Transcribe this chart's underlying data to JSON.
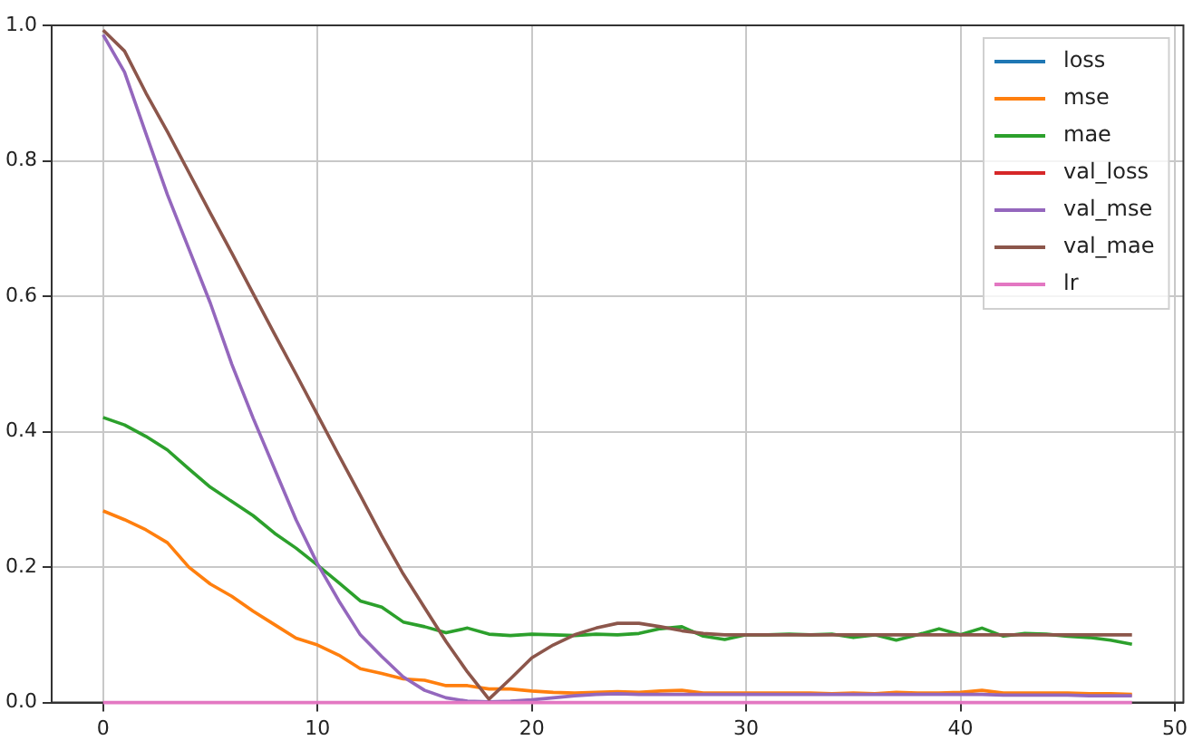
{
  "chart_data": {
    "type": "line",
    "x": [
      0,
      1,
      2,
      3,
      4,
      5,
      6,
      7,
      8,
      9,
      10,
      11,
      12,
      13,
      14,
      15,
      16,
      17,
      18,
      19,
      20,
      21,
      22,
      23,
      24,
      25,
      26,
      27,
      28,
      29,
      30,
      31,
      32,
      33,
      34,
      35,
      36,
      37,
      38,
      39,
      40,
      41,
      42,
      43,
      44,
      45,
      46,
      47,
      48
    ],
    "series": [
      {
        "name": "loss",
        "color": "#1f77b4",
        "values": [
          null,
          null,
          null,
          null,
          null,
          null,
          null,
          null,
          null,
          null,
          null,
          null,
          null,
          null,
          null,
          null,
          null,
          null,
          null,
          null,
          null,
          null,
          null,
          null,
          null,
          null,
          null,
          null,
          null,
          null,
          null,
          null,
          null,
          null,
          null,
          null,
          null,
          null,
          null,
          null,
          null,
          null,
          null,
          null,
          null,
          null,
          null,
          null,
          null
        ]
      },
      {
        "name": "mse",
        "color": "#ff7f0e",
        "values": [
          0.283,
          0.27,
          0.255,
          0.236,
          0.2,
          0.175,
          0.157,
          0.135,
          0.115,
          0.095,
          0.085,
          0.07,
          0.05,
          0.043,
          0.035,
          0.033,
          0.025,
          0.025,
          0.02,
          0.02,
          0.017,
          0.015,
          0.014,
          0.015,
          0.016,
          0.015,
          0.017,
          0.018,
          0.014,
          0.014,
          0.014,
          0.014,
          0.014,
          0.014,
          0.013,
          0.014,
          0.013,
          0.015,
          0.014,
          0.014,
          0.015,
          0.018,
          0.014,
          0.014,
          0.014,
          0.014,
          0.013,
          0.013,
          0.012
        ]
      },
      {
        "name": "mae",
        "color": "#2ca02c",
        "values": [
          0.421,
          0.41,
          0.393,
          0.373,
          0.345,
          0.318,
          0.297,
          0.276,
          0.25,
          0.228,
          0.203,
          0.177,
          0.15,
          0.141,
          0.119,
          0.112,
          0.103,
          0.11,
          0.101,
          0.099,
          0.101,
          0.1,
          0.099,
          0.101,
          0.1,
          0.102,
          0.109,
          0.112,
          0.098,
          0.093,
          0.1,
          0.1,
          0.101,
          0.1,
          0.101,
          0.096,
          0.1,
          0.092,
          0.1,
          0.109,
          0.1,
          0.11,
          0.098,
          0.102,
          0.101,
          0.098,
          0.096,
          0.092,
          0.086
        ]
      },
      {
        "name": "val_loss",
        "color": "#d62728",
        "values": [
          null,
          null,
          null,
          null,
          null,
          null,
          null,
          null,
          null,
          null,
          null,
          null,
          null,
          null,
          null,
          null,
          null,
          null,
          null,
          null,
          null,
          null,
          null,
          null,
          null,
          null,
          null,
          null,
          null,
          null,
          null,
          null,
          null,
          null,
          null,
          null,
          null,
          null,
          null,
          null,
          null,
          null,
          null,
          null,
          null,
          null,
          null,
          null,
          null
        ]
      },
      {
        "name": "val_mse",
        "color": "#9467bd",
        "values": [
          0.986,
          0.931,
          0.84,
          0.75,
          0.67,
          0.59,
          0.5,
          0.42,
          0.345,
          0.27,
          0.205,
          0.15,
          0.1,
          0.068,
          0.038,
          0.018,
          0.007,
          0.002,
          0.001,
          0.002,
          0.004,
          0.007,
          0.01,
          0.012,
          0.013,
          0.012,
          0.012,
          0.012,
          0.012,
          0.012,
          0.012,
          0.012,
          0.012,
          0.012,
          0.012,
          0.012,
          0.012,
          0.012,
          0.012,
          0.012,
          0.012,
          0.012,
          0.011,
          0.011,
          0.011,
          0.011,
          0.01,
          0.01,
          0.01
        ]
      },
      {
        "name": "val_mae",
        "color": "#8c564b",
        "values": [
          0.993,
          0.962,
          0.9,
          0.843,
          0.783,
          0.723,
          0.664,
          0.604,
          0.544,
          0.485,
          0.425,
          0.365,
          0.306,
          0.246,
          0.19,
          0.14,
          0.09,
          0.045,
          0.005,
          0.035,
          0.066,
          0.085,
          0.1,
          0.11,
          0.117,
          0.117,
          0.112,
          0.106,
          0.102,
          0.1,
          0.1,
          0.1,
          0.1,
          0.1,
          0.1,
          0.1,
          0.1,
          0.1,
          0.1,
          0.1,
          0.1,
          0.1,
          0.1,
          0.1,
          0.1,
          0.1,
          0.1,
          0.1,
          0.1
        ]
      },
      {
        "name": "lr",
        "color": "#e377c2",
        "values": [
          0,
          0,
          0,
          0,
          0,
          0,
          0,
          0,
          0,
          0,
          0,
          0,
          0,
          0,
          0,
          0,
          0,
          0,
          0,
          0,
          0,
          0,
          0,
          0,
          0,
          0,
          0,
          0,
          0,
          0,
          0,
          0,
          0,
          0,
          0,
          0,
          0,
          0,
          0,
          0,
          0,
          0,
          0,
          0,
          0,
          0,
          0,
          0,
          0
        ]
      }
    ],
    "xlim": [
      -2.4,
      50.4
    ],
    "xticks": [
      0,
      10,
      20,
      30,
      40,
      50
    ],
    "ylim": [
      0,
      1
    ],
    "yticks": [
      {
        "value": 0,
        "label": "0.0"
      },
      {
        "value": 0.2,
        "label": "0.2"
      },
      {
        "value": 0.4,
        "label": "0.4"
      },
      {
        "value": 0.6,
        "label": "0.6"
      },
      {
        "value": 0.8,
        "label": "0.8"
      },
      {
        "value": 1,
        "label": "1.0"
      }
    ],
    "grid": true,
    "legend": "top right",
    "marker": "none",
    "line_style": "solid"
  }
}
